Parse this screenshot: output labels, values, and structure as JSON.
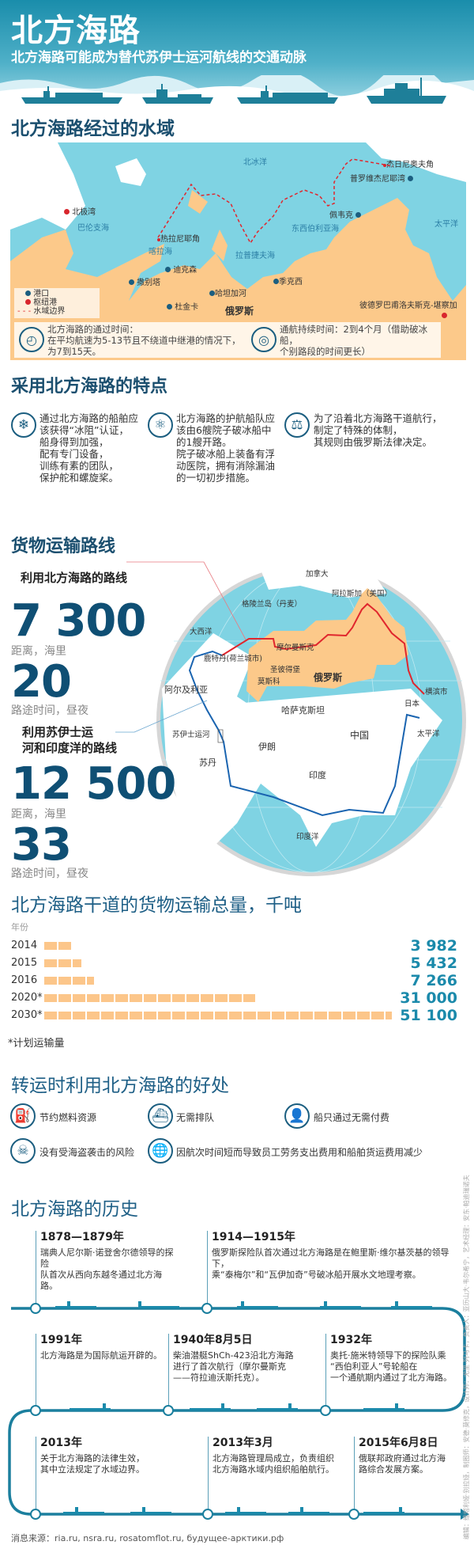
{
  "header": {
    "title": "北方海路",
    "subtitle": "北方海路可能成为替代苏伊士运河航线的交通动脉"
  },
  "waters": {
    "title": "北方海路经过的水域",
    "labels": {
      "arctic": "北冰洋",
      "barents": "巴伦支海",
      "kara": "喀拉海",
      "laptev": "拉普捷夫海",
      "eastsib": "东西伯利亚海",
      "pacific": "太平洋",
      "russia": "俄罗斯"
    },
    "ports": {
      "dezhnev": "杰日尼奥夫角",
      "provideniya": "普罗维杰尼耶湾",
      "murmansk": "北极湾",
      "zhelaniya": "热拉尼耶角",
      "dikson": "迪克森",
      "sabetta": "撒别塔",
      "khatanga": "哈坦加河",
      "dudinka": "杜金卡",
      "tiksi": "季克西",
      "pevek": "佩韦克",
      "petropavlovsk": "彼德罗巴甫洛夫斯克-堪察加"
    },
    "legend": {
      "port": "港口",
      "hub": "枢纽港",
      "border": "水域边界"
    },
    "transit_title": "北方海路的通过时间：",
    "transit_text": "在平均航速为5-13节且不绕道中继港的情况下，",
    "transit_days": "为7到15天。",
    "season_text": "通航持续时间：2到4个月（借助破冰船，",
    "season_text2": "个别路段的时间更长）",
    "colors": {
      "sea": "#7fd3e3",
      "land": "#fcc98a",
      "border": "#e0262d",
      "port": "#1b5e80",
      "hub": "#d8262d"
    }
  },
  "features": {
    "title": "采用北方海路的特点",
    "items": [
      {
        "icon": "snowflake-icon",
        "text": "通过北方海路的船舶应\n该获得“冰阻”认证，\n船身得到加强，\n配有专门设备，\n训练有素的团队，\n保护舵和螺旋桨。"
      },
      {
        "icon": "atom-icon",
        "text": "北方海路的护航船队应\n该由6艘院子破冰船中\n的1艘开路。\n院子破冰船上装备有浮\n动医院，拥有消除漏油\n的一切初步措施。"
      },
      {
        "icon": "scales-icon",
        "text": "为了沿着北方海路干道航行，\n制定了特殊的体制，\n其规则由俄罗斯法律决定。"
      }
    ]
  },
  "routes": {
    "title": "货物运输路线",
    "nsr": {
      "label": "利用北方海路的路线",
      "distance": "7 300",
      "distance_unit": "距离，海里",
      "days": "20",
      "days_unit": "路途时间，昼夜",
      "color": "#e0262d"
    },
    "suez": {
      "label1": "利用苏伊士运",
      "label2": "河和印度洋的路线",
      "distance": "12 500",
      "distance_unit": "距离，海里",
      "days": "33",
      "days_unit": "路途时间，昼夜",
      "color": "#1a64b0"
    },
    "globe": {
      "canada": "加拿大",
      "alaska": "阿拉斯加（美国）",
      "greenland": "格陵兰岛（丹麦）",
      "atlantic": "大西洋",
      "murmansk": "摩尔曼斯克",
      "rotterdam": "鹿特丹(荷兰城市)",
      "spb": "圣彼得堡",
      "moscow": "莫斯科",
      "russia": "俄罗斯",
      "algeria": "阿尔及利亚",
      "yokohama": "横滨市",
      "japan": "日本",
      "kazakhstan": "哈萨克斯坦",
      "suez": "苏伊士运河",
      "pacific": "太平洋",
      "china": "中国",
      "iran": "伊朗",
      "sudan": "苏丹",
      "india": "印度",
      "indian_ocean": "印度洋"
    }
  },
  "chart_data": {
    "type": "bar",
    "title": "北方海路干道的货物运输总量，千吨",
    "ylabel": "年份",
    "categories": [
      "2014",
      "2015",
      "2016",
      "2020*",
      "2030*"
    ],
    "values": [
      3982,
      5432,
      7266,
      31000,
      51100
    ],
    "value_labels": [
      "3 982",
      "5 432",
      "7 266",
      "31 000",
      "51 100"
    ],
    "footnote": "*计划运输量",
    "bar_color": "#fcc68a"
  },
  "benefits": {
    "title": "转运时利用北方海路的好处",
    "items": [
      {
        "icon": "fuel-icon",
        "text": "节约燃料资源"
      },
      {
        "icon": "ship-queue-icon",
        "text": "无需排队"
      },
      {
        "icon": "cashier-icon",
        "text": "船只通过无需付费"
      },
      {
        "icon": "pirate-icon",
        "text": "没有受海盗袭击的风险"
      },
      {
        "icon": "globe-icon",
        "text": "因航次时间短而导致员工劳务支出费用和船舶货运费用减少"
      }
    ]
  },
  "history": {
    "title": "北方海路的历史",
    "events": [
      {
        "date": "1878—1879年",
        "text": "瑞典人尼尔斯·诺登舍尔德领导的探险\n队首次从西向东越冬通过北方海路。"
      },
      {
        "date": "1914—1915年",
        "text": "俄罗斯探险队首次通过北方海路是在鲍里斯·维尔基茨基的领导下，\n乘“泰梅尔”和“瓦伊加奇”号破冰船开展水文地理考察。"
      },
      {
        "date": "1991年",
        "text": "北方海路是为国际航运开辟的。"
      },
      {
        "date": "1940年8月5日",
        "text": "柴油潜艇ShCh-423沿北方海路\n进行了首次航行（摩尔曼斯克\n——符拉迪沃斯托克）。"
      },
      {
        "date": "1932年",
        "text": "奥托·施米特领导下的探险队乘\n“西伯利亚人”号轮船在\n一个通航期内通过了北方海路。"
      },
      {
        "date": "2013年",
        "text": "关于北方海路的法律生效，\n其中立法规定了水域边界。"
      },
      {
        "date": "2013年3月",
        "text": "北方海路管理局成立，负责组织\n北方海路水域内组织船舶航行。"
      },
      {
        "date": "2015年6月8日",
        "text": "俄联邦政府通过北方海\n路综合发展方案。"
      }
    ]
  },
  "sources": "消息来源：ria.ru, nsra.ru, rosatomflot.ru, будущее-арктики.рф",
  "credits": "编辑：维塔利娅·别拉娅，制图师：安德·莫修克，设计师：尤里·列马卡，负责人：亚历山大·韦尔希宁，艺术经理：安东·帕迪瑞诺夫"
}
